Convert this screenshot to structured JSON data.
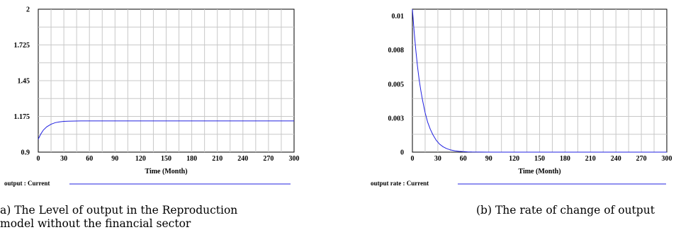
{
  "colors": {
    "series_line": "#2020e0",
    "grid": "#c8c8c8",
    "frame": "#000000"
  },
  "captions": {
    "a_line1": "a) The Level of output in the Reproduction",
    "a_line2": "model without the financial sector",
    "b_line1": "(b) The rate of change of output"
  },
  "chart_data": [
    {
      "type": "line",
      "xlabel": "Time (Month)",
      "ylabel": "",
      "xlim": [
        0,
        300
      ],
      "ylim": [
        0.9,
        2
      ],
      "x_ticks": [
        "0",
        "30",
        "60",
        "90",
        "120",
        "150",
        "180",
        "210",
        "240",
        "270",
        "300"
      ],
      "y_ticks": [
        "2",
        "1.725",
        "1.45",
        "1.175",
        "0.9"
      ],
      "grid": true,
      "legend_position": "bottom",
      "series": [
        {
          "name": "output : Current",
          "x": [
            0,
            3,
            6,
            10,
            15,
            20,
            25,
            30,
            35,
            40,
            50,
            60,
            90,
            150,
            210,
            300
          ],
          "values": [
            1.0,
            1.04,
            1.07,
            1.095,
            1.115,
            1.127,
            1.133,
            1.137,
            1.138,
            1.139,
            1.14,
            1.14,
            1.14,
            1.14,
            1.14,
            1.14
          ]
        }
      ]
    },
    {
      "type": "line",
      "xlabel": "Time (Month)",
      "ylabel": "",
      "xlim": [
        0,
        300
      ],
      "ylim": [
        0,
        0.0105
      ],
      "x_ticks": [
        "0",
        "30",
        "60",
        "90",
        "120",
        "150",
        "180",
        "210",
        "240",
        "270",
        "300"
      ],
      "y_ticks": [
        {
          "label": "0.01",
          "value": 0.01
        },
        {
          "label": "0.008",
          "value": 0.0075
        },
        {
          "label": "0.005",
          "value": 0.005
        },
        {
          "label": "0.003",
          "value": 0.0025
        },
        {
          "label": "0",
          "value": 0
        }
      ],
      "grid": true,
      "legend_position": "bottom",
      "series": [
        {
          "name": "output rate : Current",
          "x": [
            0,
            2,
            4,
            6,
            8,
            10,
            12,
            15,
            18,
            21,
            24,
            28,
            32,
            36,
            40,
            45,
            50,
            55,
            60,
            65,
            70,
            90,
            150,
            210,
            300
          ],
          "values": [
            0.0105,
            0.0089,
            0.0075,
            0.0063,
            0.0053,
            0.0045,
            0.0038,
            0.0029,
            0.0022,
            0.0017,
            0.0013,
            0.00088,
            0.00059,
            0.0004,
            0.00027,
            0.00016,
            0.0001,
            6e-05,
            4e-05,
            2e-05,
            1e-05,
            0,
            0,
            0,
            0
          ]
        }
      ]
    }
  ]
}
